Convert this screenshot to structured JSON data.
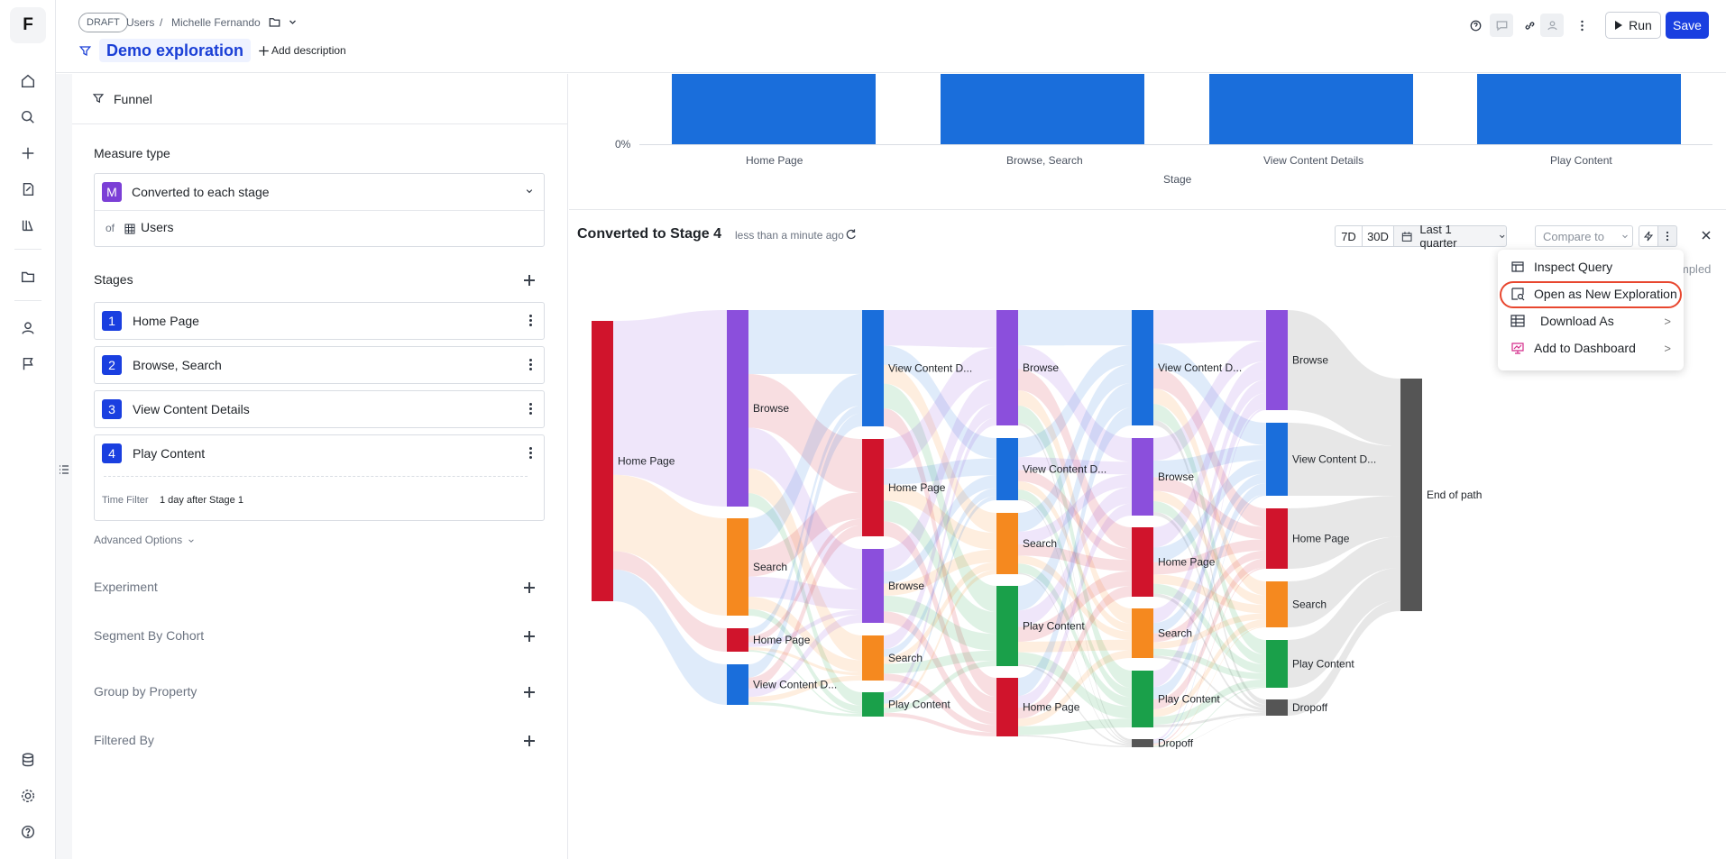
{
  "app": {
    "logo_letter": "F"
  },
  "header": {
    "status_badge": "DRAFT",
    "breadcrumb": [
      "Users",
      "/",
      "Michelle Fernando"
    ],
    "title": "Demo exploration",
    "add_description": "Add description",
    "run_label": "Run",
    "save_label": "Save"
  },
  "panel": {
    "funnel_tab": "Funnel",
    "measure_type_label": "Measure type",
    "measure_badge": "M",
    "measure_value": "Converted to each stage",
    "of_label": "of",
    "of_entity": "Users",
    "stages_label": "Stages",
    "stages": [
      {
        "num": "1",
        "name": "Home Page"
      },
      {
        "num": "2",
        "name": "Browse, Search"
      },
      {
        "num": "3",
        "name": "View Content Details"
      },
      {
        "num": "4",
        "name": "Play Content"
      }
    ],
    "time_filter_label": "Time Filter",
    "time_filter_value": "1 day after Stage 1",
    "advanced_options": "Advanced Options",
    "sections": [
      "Experiment",
      "Segment By Cohort",
      "Group by Property",
      "Filtered By"
    ]
  },
  "top_chart": {
    "y_tick": "0%",
    "categories": [
      "Home Page",
      "Browse, Search",
      "View Content Details",
      "Play Content"
    ],
    "xlabel": "Stage"
  },
  "sankey": {
    "title": "Converted to Stage 4",
    "updated": "less than a minute ago",
    "range_7d": "7D",
    "range_30d": "30D",
    "date_range": "Last 1 quarter",
    "compare_placeholder": "Compare to",
    "hidden_text_fragment": "mpled",
    "columns": [
      [
        {
          "label": "Home Page",
          "color": "#d0142c"
        }
      ],
      [
        {
          "label": "Browse",
          "color": "#8b4fdc"
        },
        {
          "label": "Search",
          "color": "#f5891f"
        },
        {
          "label": "Home Page",
          "color": "#d0142c"
        },
        {
          "label": "View Content D...",
          "color": "#1a6edb"
        }
      ],
      [
        {
          "label": "View Content D...",
          "color": "#1a6edb"
        },
        {
          "label": "Home Page",
          "color": "#d0142c"
        },
        {
          "label": "Browse",
          "color": "#8b4fdc"
        },
        {
          "label": "Search",
          "color": "#f5891f"
        },
        {
          "label": "Play Content",
          "color": "#1aa04a"
        }
      ],
      [
        {
          "label": "Browse",
          "color": "#8b4fdc"
        },
        {
          "label": "View Content D...",
          "color": "#1a6edb"
        },
        {
          "label": "Search",
          "color": "#f5891f"
        },
        {
          "label": "Play Content",
          "color": "#1aa04a"
        },
        {
          "label": "Home Page",
          "color": "#d0142c"
        }
      ],
      [
        {
          "label": "View Content D...",
          "color": "#1a6edb"
        },
        {
          "label": "Browse",
          "color": "#8b4fdc"
        },
        {
          "label": "Home Page",
          "color": "#d0142c"
        },
        {
          "label": "Search",
          "color": "#f5891f"
        },
        {
          "label": "Play Content",
          "color": "#1aa04a"
        },
        {
          "label": "Dropoff",
          "color": "#555555"
        }
      ],
      [
        {
          "label": "Browse",
          "color": "#8b4fdc"
        },
        {
          "label": "View Content D...",
          "color": "#1a6edb"
        },
        {
          "label": "Home Page",
          "color": "#d0142c"
        },
        {
          "label": "Search",
          "color": "#f5891f"
        },
        {
          "label": "Play Content",
          "color": "#1aa04a"
        },
        {
          "label": "Dropoff",
          "color": "#555555"
        }
      ],
      [
        {
          "label": "End of path",
          "color": "#555555"
        }
      ]
    ]
  },
  "menu": {
    "items": [
      {
        "label": "Inspect Query",
        "has_submenu": false
      },
      {
        "label": "Open as New Exploration",
        "has_submenu": false,
        "highlighted": true
      },
      {
        "label": "Download As",
        "has_submenu": true
      },
      {
        "label": "Add to Dashboard",
        "has_submenu": true
      }
    ],
    "highlight_color": "#e8472f"
  }
}
